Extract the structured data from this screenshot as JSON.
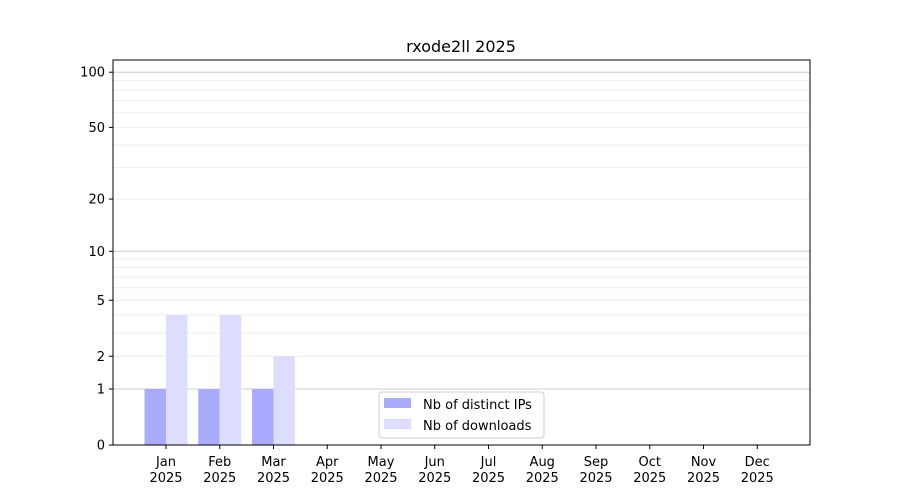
{
  "chart_data": {
    "type": "bar",
    "title": "rxode2ll 2025",
    "xlabel": "",
    "ylabel": "",
    "y_scale": "symlog",
    "ylim": [
      0,
      118
    ],
    "y_ticks": [
      0,
      1,
      2,
      5,
      10,
      20,
      50,
      100
    ],
    "y_tick_labels": [
      "0",
      "1",
      "2",
      "5",
      "10",
      "20",
      "50",
      "100"
    ],
    "grid": true,
    "legend_position": "lower-center",
    "categories": [
      "Jan\n2025",
      "Feb\n2025",
      "Mar\n2025",
      "Apr\n2025",
      "May\n2025",
      "Jun\n2025",
      "Jul\n2025",
      "Aug\n2025",
      "Sep\n2025",
      "Oct\n2025",
      "Nov\n2025",
      "Dec\n2025"
    ],
    "category_months": [
      "Jan",
      "Feb",
      "Mar",
      "Apr",
      "May",
      "Jun",
      "Jul",
      "Aug",
      "Sep",
      "Oct",
      "Nov",
      "Dec"
    ],
    "category_year": "2025",
    "series": [
      {
        "name": "Nb of distinct IPs",
        "color": "#aaaaff",
        "values": [
          1,
          1,
          1,
          0,
          0,
          0,
          0,
          0,
          0,
          0,
          0,
          0
        ]
      },
      {
        "name": "Nb of downloads",
        "color": "#ddddff",
        "values": [
          4,
          4,
          2,
          0,
          0,
          0,
          0,
          0,
          0,
          0,
          0,
          0
        ]
      }
    ]
  }
}
